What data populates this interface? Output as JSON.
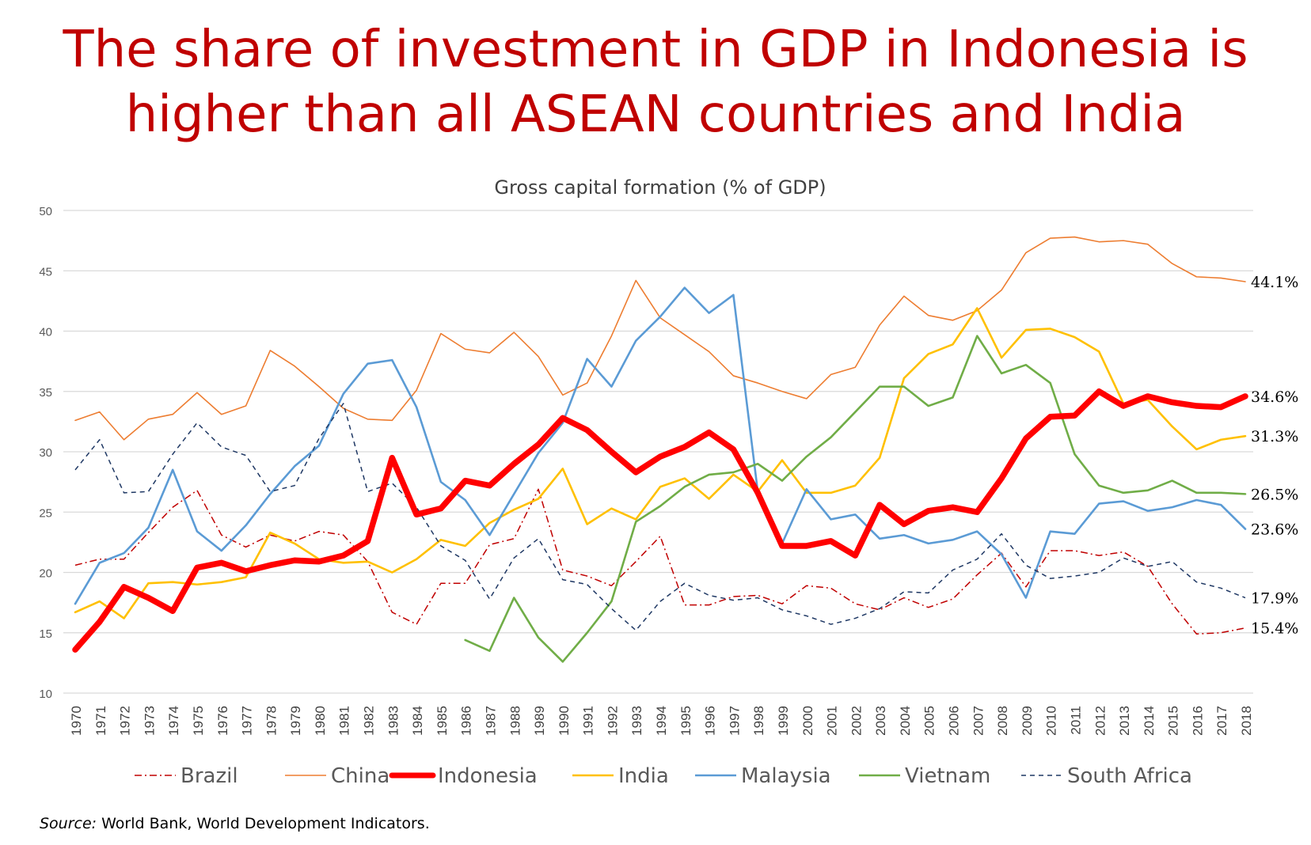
{
  "headline": {
    "line1": "The share of investment in GDP in Indonesia is",
    "line2": "higher than all ASEAN countries and India"
  },
  "source": {
    "label": "Source:",
    "text": "World Bank, World Development Indicators."
  },
  "chart_data": {
    "type": "line",
    "title": "Gross capital formation (% of GDP)",
    "xlabel": "",
    "ylabel": "",
    "ylim": [
      10,
      50
    ],
    "yticks": [
      10,
      15,
      20,
      25,
      30,
      35,
      40,
      45,
      50
    ],
    "grid": "horizontal",
    "legend_position": "bottom",
    "x": [
      "1970",
      "1971",
      "1972",
      "1973",
      "1974",
      "1975",
      "1976",
      "1977",
      "1978",
      "1979",
      "1980",
      "1981",
      "1982",
      "1983",
      "1984",
      "1985",
      "1986",
      "1987",
      "1988",
      "1989",
      "1990",
      "1991",
      "1992",
      "1993",
      "1994",
      "1995",
      "1996",
      "1997",
      "1998",
      "1999",
      "2000",
      "2001",
      "2002",
      "2003",
      "2004",
      "2005",
      "2006",
      "2007",
      "2008",
      "2009",
      "2010",
      "2011",
      "2012",
      "2013",
      "2014",
      "2015",
      "2016",
      "2017",
      "2018"
    ],
    "series": [
      {
        "name": "Brazil",
        "color": "#c00000",
        "dash": "dashdot",
        "width": 1.5,
        "values": [
          20.6,
          21.1,
          21.1,
          23.3,
          25.4,
          26.8,
          23.1,
          22.1,
          23.1,
          22.6,
          23.4,
          23.1,
          20.9,
          16.7,
          15.7,
          19.1,
          19.1,
          22.3,
          22.8,
          26.9,
          20.2,
          19.7,
          18.9,
          20.9,
          23.0,
          17.3,
          17.3,
          18.0,
          18.1,
          17.4,
          18.9,
          18.7,
          17.4,
          16.9,
          17.9,
          17.1,
          17.8,
          19.8,
          21.6,
          18.8,
          21.8,
          21.8,
          21.4,
          21.7,
          20.5,
          17.4,
          14.9,
          15.0,
          15.4
        ]
      },
      {
        "name": "China",
        "color": "#ed7d31",
        "dash": "solid",
        "width": 1.6,
        "values": [
          32.6,
          33.3,
          31.0,
          32.7,
          33.1,
          34.9,
          33.1,
          33.8,
          38.4,
          37.1,
          35.4,
          33.6,
          32.7,
          32.6,
          35.1,
          39.8,
          38.5,
          38.2,
          39.9,
          37.9,
          34.7,
          35.7,
          39.6,
          44.2,
          41.1,
          39.7,
          38.3,
          36.3,
          35.7,
          35.0,
          34.4,
          36.4,
          37.0,
          40.5,
          42.9,
          41.3,
          40.9,
          41.7,
          43.4,
          46.5,
          47.7,
          47.8,
          47.4,
          47.5,
          47.2,
          45.6,
          44.5,
          44.4,
          44.1
        ]
      },
      {
        "name": "Indonesia",
        "color": "#ff0000",
        "dash": "solid",
        "width": 7.5,
        "values": [
          13.6,
          15.9,
          18.8,
          17.9,
          16.8,
          20.4,
          20.8,
          20.1,
          20.6,
          21.0,
          20.9,
          21.4,
          22.6,
          29.5,
          24.8,
          25.3,
          27.6,
          27.2,
          29.0,
          30.6,
          32.8,
          31.8,
          30.0,
          28.3,
          29.6,
          30.4,
          31.6,
          30.2,
          26.6,
          22.2,
          22.2,
          22.6,
          21.4,
          25.6,
          24.0,
          25.1,
          25.4,
          25.0,
          27.8,
          31.1,
          32.9,
          33.0,
          35.0,
          33.8,
          34.6,
          34.1,
          33.8,
          33.7,
          34.6
        ]
      },
      {
        "name": "India",
        "color": "#ffc000",
        "dash": "solid",
        "width": 2.6,
        "values": [
          16.7,
          17.6,
          16.2,
          19.1,
          19.2,
          19.0,
          19.2,
          19.6,
          23.3,
          22.4,
          21.1,
          20.8,
          20.9,
          20.0,
          21.1,
          22.7,
          22.2,
          24.1,
          25.2,
          26.1,
          28.6,
          24.0,
          25.3,
          24.4,
          27.1,
          27.8,
          26.1,
          28.1,
          26.7,
          29.3,
          26.6,
          26.6,
          27.2,
          29.5,
          36.1,
          38.1,
          38.9,
          41.9,
          37.8,
          40.1,
          40.2,
          39.5,
          38.3,
          34.0,
          34.3,
          32.1,
          30.2,
          31.0,
          31.3
        ]
      },
      {
        "name": "Malaysia",
        "color": "#5b9bd5",
        "dash": "solid",
        "width": 2.6,
        "values": [
          17.4,
          20.8,
          21.6,
          23.7,
          28.5,
          23.4,
          21.8,
          23.9,
          26.5,
          28.8,
          30.5,
          34.8,
          37.3,
          37.6,
          33.7,
          27.5,
          26.0,
          23.1,
          26.5,
          29.9,
          32.4,
          37.7,
          35.4,
          39.2,
          41.2,
          43.6,
          41.5,
          43.0,
          26.7,
          22.4,
          26.9,
          24.4,
          24.8,
          22.8,
          23.1,
          22.4,
          22.7,
          23.4,
          21.5,
          17.9,
          23.4,
          23.2,
          25.7,
          25.9,
          25.1,
          25.4,
          26.0,
          25.6,
          23.6
        ]
      },
      {
        "name": "Vietnam",
        "color": "#70ad47",
        "dash": "solid",
        "width": 2.6,
        "values": [
          null,
          null,
          null,
          null,
          null,
          null,
          null,
          null,
          null,
          null,
          null,
          null,
          null,
          null,
          null,
          null,
          14.4,
          13.5,
          17.9,
          14.6,
          12.6,
          15.0,
          17.6,
          24.2,
          25.5,
          27.1,
          28.1,
          28.3,
          29.0,
          27.6,
          29.6,
          31.2,
          33.3,
          35.4,
          35.4,
          33.8,
          34.5,
          39.6,
          36.5,
          37.2,
          35.7,
          29.8,
          27.2,
          26.6,
          26.8,
          27.6,
          26.6,
          26.6,
          26.5
        ]
      },
      {
        "name": "South Africa",
        "color": "#1f3864",
        "dash": "dashed",
        "width": 1.5,
        "values": [
          28.5,
          31.0,
          26.6,
          26.7,
          29.8,
          32.4,
          30.4,
          29.7,
          26.7,
          27.2,
          31.1,
          34.0,
          26.7,
          27.4,
          25.4,
          22.2,
          21.0,
          17.8,
          21.2,
          22.8,
          19.4,
          19.0,
          17.0,
          15.2,
          17.6,
          19.1,
          18.1,
          17.7,
          17.9,
          16.9,
          16.4,
          15.7,
          16.2,
          17.0,
          18.4,
          18.3,
          20.2,
          21.1,
          23.2,
          20.6,
          19.5,
          19.7,
          20.0,
          21.2,
          20.5,
          20.9,
          19.2,
          18.7,
          17.9
        ]
      }
    ],
    "end_labels": [
      "44.1%",
      "34.6%",
      "31.3%",
      "26.5%",
      "23.6%",
      "17.9%",
      "15.4%"
    ]
  }
}
